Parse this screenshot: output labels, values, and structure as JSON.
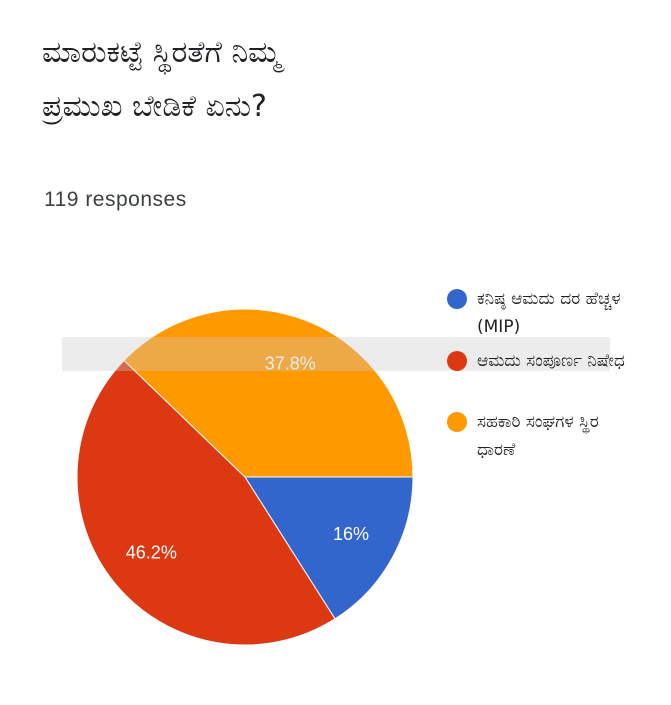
{
  "chart_data": {
    "type": "pie",
    "title": "ಮಾರುಕಟ್ಟೆ ಸ್ಥಿರತೆಗೆ ನಿಮ್ಮ ಪ್ರಮುಖ ಬೇಡಿಕೆ ಏನು?",
    "subtitle": "119 responses",
    "categories": [
      "ಕನಿಷ್ಠ ಆಮದು ದರ ಹೆಚ್ಚಳ (MIP)",
      "ಆಮದು ಸಂಪೂರ್ಣ ನಿಷೇಧ",
      "ಸಹಕಾರಿ ಸಂಘಗಳ ಸ್ಥಿರ ಧಾರಣೆ"
    ],
    "values": [
      16,
      46.2,
      37.8
    ],
    "value_labels": [
      "16%",
      "46.2%",
      "37.8%"
    ],
    "colors": [
      "#3366cc",
      "#dc3912",
      "#ff9900"
    ],
    "legend": "right"
  }
}
